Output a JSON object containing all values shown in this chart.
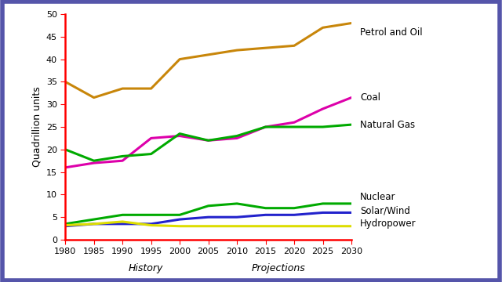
{
  "years": [
    1980,
    1985,
    1990,
    1995,
    2000,
    2005,
    2010,
    2015,
    2020,
    2025,
    2030
  ],
  "petrol_and_oil": [
    35,
    31.5,
    33.5,
    33.5,
    40,
    41,
    42,
    42.5,
    43,
    47,
    48
  ],
  "coal": [
    16,
    17,
    17.5,
    22.5,
    23,
    22,
    22.5,
    25,
    26,
    29,
    31.5
  ],
  "natural_gas": [
    20,
    17.5,
    18.5,
    19,
    23.5,
    22,
    23,
    25,
    25,
    25,
    25.5
  ],
  "nuclear": [
    3.5,
    4.5,
    5.5,
    5.5,
    5.5,
    7.5,
    8,
    7,
    7,
    8,
    8
  ],
  "solar_wind": [
    3,
    3.5,
    3.5,
    3.5,
    4.5,
    5,
    5,
    5.5,
    5.5,
    6,
    6
  ],
  "hydropower": [
    3.2,
    3.5,
    4,
    3.2,
    3,
    3,
    3,
    3,
    3,
    3,
    3
  ],
  "colors": {
    "petrol_and_oil": "#c8860a",
    "coal": "#dd00aa",
    "natural_gas": "#00aa00",
    "nuclear": "#00aa00",
    "solar_wind": "#2222cc",
    "hydropower": "#dddd00"
  },
  "labels": {
    "petrol_and_oil": "Petrol and Oil",
    "coal": "Coal",
    "natural_gas": "Natural Gas",
    "nuclear": "Nuclear",
    "solar_wind": "Solar/Wind",
    "hydropower": "Hydropower"
  },
  "ylabel": "Quadrillion units",
  "ylim": [
    0,
    50
  ],
  "yticks": [
    0,
    5,
    10,
    15,
    20,
    25,
    30,
    35,
    40,
    45,
    50
  ],
  "history_label": "History",
  "projections_label": "Projections",
  "background_color": "#ffffff",
  "border_color": "#5555aa"
}
